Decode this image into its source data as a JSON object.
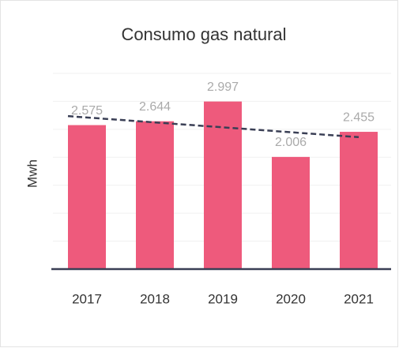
{
  "chart_data": {
    "type": "bar",
    "title": "Consumo gas natural",
    "y_label": "Mwh",
    "categories": [
      "2017",
      "2018",
      "2019",
      "2020",
      "2021"
    ],
    "values": [
      2575,
      2644,
      2997,
      2006,
      2455
    ],
    "value_labels": [
      "2.575",
      "2.644",
      "2.997",
      "2.006",
      "2.455"
    ],
    "color": "#ee5a7c",
    "trendline": true,
    "ylim": [
      0,
      3500
    ],
    "yticks": [
      0,
      500,
      1000,
      1500,
      2000,
      2500,
      3000,
      3500
    ],
    "grid": true
  }
}
